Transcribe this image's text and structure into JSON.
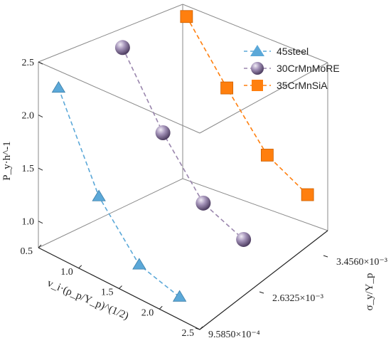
{
  "chart_data": {
    "type": "scatter",
    "projection": "3d",
    "ylabel": "P_y·h^-1",
    "xlabel": "v_i·(ρ_p/Y_p)^(1/2)",
    "zlabel": "σ_y/Y_p",
    "xlim": [
      0.5,
      2.5
    ],
    "x_ticks": [
      "0.5",
      "1.0",
      "1.5",
      "2.0",
      "2.5"
    ],
    "ylim": [
      0.75,
      2.5
    ],
    "y_ticks": [
      "1.0",
      "1.5",
      "2.0",
      "2.5"
    ],
    "z_ticks": [
      "9.5850×10⁻⁴",
      "2.6325×10⁻³",
      "3.4560×10⁻³"
    ],
    "z_tick_values": [
      0.0009585,
      0.0026325,
      0.003456
    ],
    "legend_position": "top-right",
    "grid": false,
    "series": [
      {
        "name": "45steel",
        "color": "#5ba8d8",
        "marker": "triangle",
        "z": 0.0009585,
        "x": [
          0.75,
          1.25,
          1.75,
          2.25
        ],
        "y": [
          2.35,
          1.52,
          1.07,
          0.96
        ]
      },
      {
        "name": "30CrMnMoRE",
        "color": "#9a86ad",
        "marker": "sphere",
        "z": 0.0026325,
        "x": [
          0.75,
          1.25,
          1.75,
          2.25
        ],
        "y": [
          2.39,
          1.78,
          1.31,
          1.16
        ]
      },
      {
        "name": "35CrMnSiA",
        "color": "#ff7f0e",
        "marker": "square",
        "z": 0.003456,
        "x": [
          0.75,
          1.25,
          1.75,
          2.25
        ],
        "y": [
          2.34,
          1.86,
          1.42,
          1.24
        ]
      }
    ]
  }
}
